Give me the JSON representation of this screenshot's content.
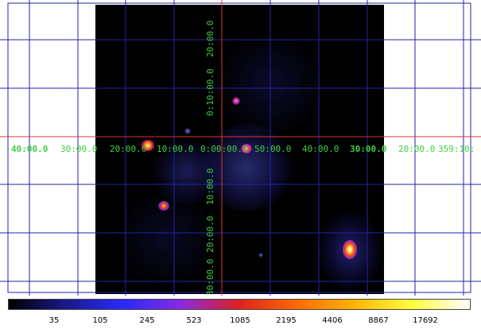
{
  "image": {
    "colormap": "heat",
    "background_color": "#000000",
    "grid_color": "#2323a8",
    "crosshair_color": "#e03030",
    "label_color": "#40d040"
  },
  "coordinates": {
    "horizontal_labels": [
      "40:00.0",
      "30:00.0",
      "20:00.0",
      "10:00.0",
      "0:00:00.0",
      "50:00.0",
      "40:00.0",
      "30:00.0",
      "20:00.0",
      "359:10:"
    ],
    "vertical_labels": [
      "20:00.0",
      "0:10:00.0",
      "10:00.0",
      "20:00.0",
      "30:00.0"
    ]
  },
  "colorbar": {
    "gradient": [
      "#000000",
      "#1a1a8a",
      "#2a2aff",
      "#8a2ae0",
      "#e02020",
      "#ff6a00",
      "#ffb400",
      "#ffff40",
      "#ffffff"
    ],
    "ticks": [
      "35",
      "105",
      "245",
      "523",
      "1085",
      "2195",
      "4406",
      "8867",
      "17692"
    ]
  }
}
